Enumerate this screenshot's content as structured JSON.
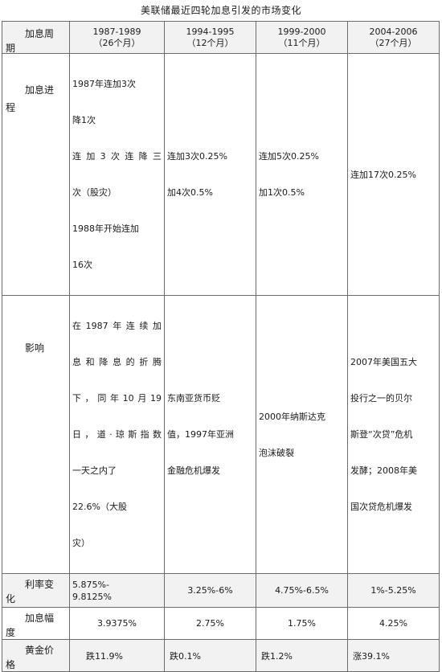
{
  "title": "美联储最近四轮加息引发的市场变化",
  "header": {
    "label_a": "加息周",
    "label_b": "期",
    "periods": [
      {
        "years": "1987-1989",
        "months": "（26个月）"
      },
      {
        "years": "1994-1995",
        "months": "（12个月）"
      },
      {
        "years": "1999-2000",
        "months": "（11个月）"
      },
      {
        "years": "2004-2006",
        "months": "（27个月）"
      }
    ]
  },
  "process": {
    "label_a": "加息进",
    "label_b": "程",
    "cells": [
      [
        "1987年连加3次",
        "降1次",
        "连加3次连降三",
        "次（股灾）",
        "1988年开始连加",
        "16次"
      ],
      [
        "连加3次0.25%",
        "加4次0.5%"
      ],
      [
        "连加5次0.25%",
        "加1次0.5%"
      ],
      [
        "连加17次0.25%"
      ]
    ]
  },
  "impact": {
    "label": "影响",
    "cells": [
      [
        "在1987年连续加",
        "息和降息的折腾",
        "下，同年10月19",
        "日，道·琼斯指数",
        "一天之内了",
        "22.6%（大股",
        "灾）"
      ],
      [
        "东南亚货币贬",
        "值，1997年亚洲",
        "金融危机爆发"
      ],
      [
        "2000年纳斯达克",
        "泡沫破裂"
      ],
      [
        "2007年美国五大",
        "投行之一的贝尔",
        "斯登“次贷”危机",
        "发酵；2008年美",
        "国次贷危机爆发"
      ]
    ]
  },
  "rate_change": {
    "label_a": "利率变",
    "label_b": "化",
    "values": [
      "5.875%-\n9.8125%",
      "3.25%-6%",
      "4.75%-6.5%",
      "1%-5.25%"
    ]
  },
  "hike_range": {
    "label_a": "加息幅",
    "label_b": "度",
    "values": [
      "3.9375%",
      "2.75%",
      "1.75%",
      "4.25%"
    ]
  },
  "gold": {
    "label_a": "黄金价",
    "label_b": "格",
    "values": [
      "跌11.9%",
      "跌0.1%",
      "跌1.2%",
      "涨39.1%"
    ]
  }
}
